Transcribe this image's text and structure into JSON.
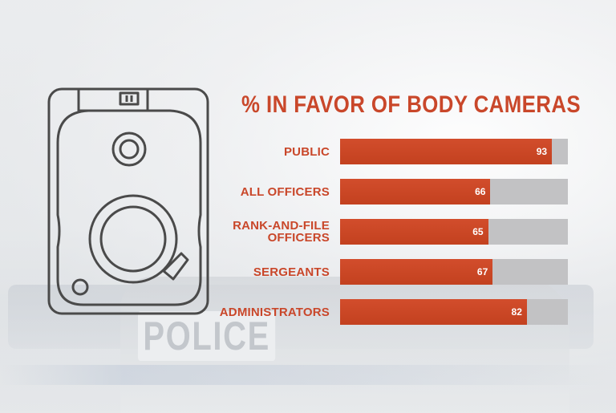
{
  "background": {
    "vehicle_text": "POLICE"
  },
  "icon": {
    "name": "body-camera-icon",
    "stroke_color": "#4a4a4a"
  },
  "chart_data": {
    "type": "bar",
    "orientation": "horizontal",
    "title": "% IN FAVOR OF BODY CAMERAS",
    "xlabel": "",
    "ylabel": "",
    "xlim": [
      0,
      100
    ],
    "grid": false,
    "categories": [
      "PUBLIC",
      "ALL OFFICERS",
      "RANK-AND-FILE OFFICERS",
      "SERGEANTS",
      "ADMINISTRATORS"
    ],
    "category_lines": [
      [
        "PUBLIC"
      ],
      [
        "ALL OFFICERS"
      ],
      [
        "RANK-AND-FILE",
        "OFFICERS"
      ],
      [
        "SERGEANTS"
      ],
      [
        "ADMINISTRATORS"
      ]
    ],
    "values": [
      93,
      66,
      65,
      67,
      82
    ],
    "colors": {
      "bar": "#c9472a",
      "track": "#c2c2c4",
      "title": "#c9472a",
      "value_label": "#ffffff"
    }
  }
}
